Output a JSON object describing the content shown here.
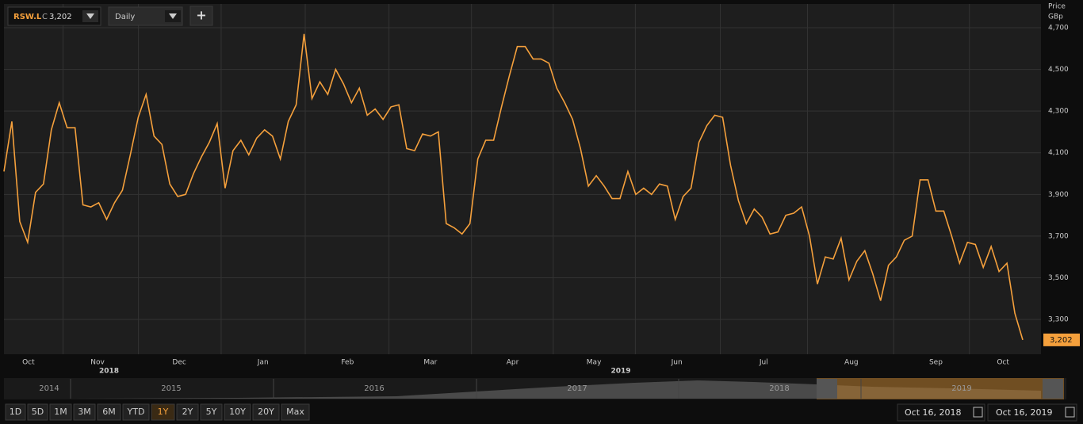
{
  "toolbar": {
    "close_prefix": "C",
    "close": "3,202",
    "interval": "Daily",
    "add": "+"
  },
  "chart_data": {
    "type": "line",
    "axis_title": "Price",
    "unit": "GBp",
    "series": [
      {
        "name": "RSW.L",
        "color": "#f5a03c",
        "values": [
          4010,
          4250,
          3770,
          3670,
          3910,
          3950,
          4210,
          4340,
          4220,
          4220,
          3850,
          3840,
          3860,
          3780,
          3860,
          3920,
          4090,
          4270,
          4380,
          4180,
          4140,
          3950,
          3890,
          3900,
          4000,
          4080,
          4150,
          4240,
          3930,
          4110,
          4160,
          4090,
          4170,
          4210,
          4180,
          4070,
          4250,
          4330,
          4670,
          4360,
          4440,
          4380,
          4500,
          4430,
          4340,
          4410,
          4280,
          4310,
          4260,
          4320,
          4330,
          4120,
          4110,
          4190,
          4180,
          4200,
          3760,
          3740,
          3710,
          3760,
          4070,
          4160,
          4160,
          4320,
          4470,
          4610,
          4610,
          4550,
          4550,
          4530,
          4410,
          4340,
          4260,
          4120,
          3940,
          3990,
          3940,
          3880,
          3880,
          4010,
          3900,
          3930,
          3900,
          3950,
          3940,
          3780,
          3890,
          3930,
          4150,
          4230,
          4280,
          4270,
          4040,
          3870,
          3760,
          3830,
          3790,
          3710,
          3720,
          3800,
          3810,
          3840,
          3700,
          3470,
          3600,
          3590,
          3690,
          3490,
          3580,
          3630,
          3520,
          3390,
          3560,
          3600,
          3680,
          3700,
          3970,
          3970,
          3820,
          3820,
          3700,
          3570,
          3670,
          3660,
          3550,
          3650,
          3530,
          3570,
          3330,
          3202
        ]
      }
    ],
    "last_label": "3,202",
    "xlim": [
      0,
      129
    ],
    "ylim": [
      3133,
      4814
    ],
    "yticks": [
      {
        "value": 3300,
        "label": "3,300"
      },
      {
        "value": 3500,
        "label": "3,500"
      },
      {
        "value": 3700,
        "label": "3,700"
      },
      {
        "value": 3900,
        "label": "3,900"
      },
      {
        "value": 4100,
        "label": "4,100"
      },
      {
        "value": 4300,
        "label": "4,300"
      },
      {
        "value": 4500,
        "label": "4,500"
      },
      {
        "value": 4700,
        "label": "4,700"
      }
    ],
    "xticks": [
      {
        "value": 3.1,
        "label": "Oct"
      },
      {
        "value": 11.85,
        "label": "Nov"
      },
      {
        "value": 22.2,
        "label": "Dec"
      },
      {
        "value": 32.8,
        "label": "Jan"
      },
      {
        "value": 43.5,
        "label": "Feb"
      },
      {
        "value": 54,
        "label": "Mar"
      },
      {
        "value": 64.4,
        "label": "Apr"
      },
      {
        "value": 74.7,
        "label": "May"
      },
      {
        "value": 85.2,
        "label": "Jun"
      },
      {
        "value": 96.2,
        "label": "Jul"
      },
      {
        "value": 107.3,
        "label": "Aug"
      },
      {
        "value": 118,
        "label": "Sep"
      },
      {
        "value": 126.5,
        "label": "Oct"
      }
    ],
    "year_labels": [
      {
        "value": 13.3,
        "label": "2018"
      },
      {
        "value": 78.1,
        "label": "2019"
      }
    ],
    "grid": true
  },
  "navigator": {
    "years": [
      "2014",
      "2015",
      "2016",
      "2017",
      "2018",
      "2019"
    ]
  },
  "ranges": {
    "buttons": [
      "1D",
      "5D",
      "1M",
      "3M",
      "6M",
      "YTD",
      "1Y",
      "2Y",
      "5Y",
      "10Y",
      "20Y",
      "Max"
    ],
    "active_index": 6
  },
  "date_range": {
    "from": "Oct 16, 2018",
    "to": "Oct 16, 2019"
  }
}
